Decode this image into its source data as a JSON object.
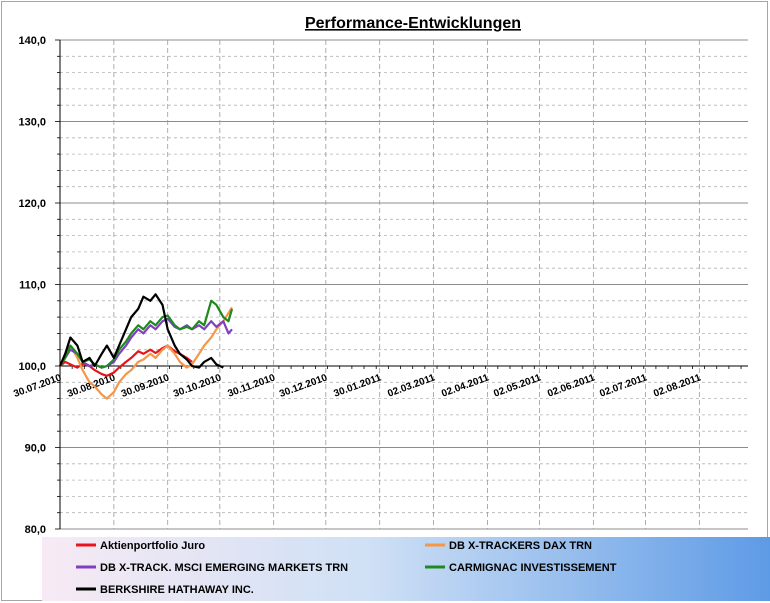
{
  "chart_data": {
    "type": "line",
    "title": "Performance-Entwicklungen",
    "xlabel": "",
    "ylabel": "",
    "ylim": [
      80,
      140
    ],
    "y_ticks": [
      "80,0",
      "90,0",
      "100,0",
      "110,0",
      "120,0",
      "130,0",
      "140,0"
    ],
    "x_ticks": [
      "30.07.2010",
      "30.08.2010",
      "30.09.2010",
      "30.10.2010",
      "30.11.2010",
      "30.12.2010",
      "30.01.2011",
      "02.03.2011",
      "02.04.2011",
      "02.05.2011",
      "02.06.2011",
      "02.07.2011",
      "02.08.2011"
    ],
    "x_range": [
      "2010-07-30",
      "2011-08-30"
    ],
    "grid": true,
    "legend_position": "bottom",
    "series": [
      {
        "name": "Aktienportfolio Juro",
        "color": "#e8141c",
        "points": [
          [
            "2010-07-30",
            100.0
          ],
          [
            "2010-08-02",
            100.5
          ],
          [
            "2010-08-05",
            100.2
          ],
          [
            "2010-08-09",
            99.8
          ],
          [
            "2010-08-12",
            100.3
          ],
          [
            "2010-08-16",
            100.0
          ],
          [
            "2010-08-19",
            99.5
          ],
          [
            "2010-08-23",
            99.0
          ],
          [
            "2010-08-26",
            98.8
          ],
          [
            "2010-08-30",
            99.2
          ],
          [
            "2010-09-02",
            99.8
          ],
          [
            "2010-09-06",
            100.5
          ],
          [
            "2010-09-09",
            101.0
          ],
          [
            "2010-09-13",
            101.8
          ],
          [
            "2010-09-16",
            101.5
          ],
          [
            "2010-09-20",
            102.0
          ],
          [
            "2010-09-23",
            101.6
          ],
          [
            "2010-09-27",
            102.2
          ],
          [
            "2010-09-30",
            102.5
          ],
          [
            "2010-10-04",
            101.8
          ],
          [
            "2010-10-07",
            101.5
          ],
          [
            "2010-10-11",
            101.0
          ],
          [
            "2010-10-14",
            100.5
          ]
        ]
      },
      {
        "name": "DB X-TRACKERS DAX TRN",
        "color": "#f79646",
        "points": [
          [
            "2010-07-30",
            100.0
          ],
          [
            "2010-08-02",
            101.5
          ],
          [
            "2010-08-05",
            102.5
          ],
          [
            "2010-08-09",
            101.0
          ],
          [
            "2010-08-12",
            99.5
          ],
          [
            "2010-08-16",
            98.0
          ],
          [
            "2010-08-19",
            97.5
          ],
          [
            "2010-08-23",
            96.5
          ],
          [
            "2010-08-26",
            96.0
          ],
          [
            "2010-08-30",
            96.8
          ],
          [
            "2010-09-02",
            98.0
          ],
          [
            "2010-09-06",
            99.0
          ],
          [
            "2010-09-09",
            99.5
          ],
          [
            "2010-09-13",
            100.5
          ],
          [
            "2010-09-16",
            100.8
          ],
          [
            "2010-09-20",
            101.5
          ],
          [
            "2010-09-23",
            101.0
          ],
          [
            "2010-09-27",
            102.0
          ],
          [
            "2010-09-30",
            102.5
          ],
          [
            "2010-10-04",
            101.5
          ],
          [
            "2010-10-07",
            100.5
          ],
          [
            "2010-10-11",
            99.8
          ],
          [
            "2010-10-14",
            100.2
          ],
          [
            "2010-10-18",
            101.5
          ],
          [
            "2010-10-21",
            102.5
          ],
          [
            "2010-10-25",
            103.5
          ],
          [
            "2010-10-28",
            104.5
          ],
          [
            "2010-11-01",
            105.5
          ],
          [
            "2010-11-04",
            106.5
          ],
          [
            "2010-11-06",
            107.2
          ]
        ]
      },
      {
        "name": "DB X-TRACK.  MSCI EMERGING MARKETS TRN",
        "color": "#7f3fbf",
        "points": [
          [
            "2010-07-30",
            100.0
          ],
          [
            "2010-08-02",
            101.0
          ],
          [
            "2010-08-05",
            102.0
          ],
          [
            "2010-08-09",
            101.5
          ],
          [
            "2010-08-12",
            100.5
          ],
          [
            "2010-08-16",
            100.0
          ],
          [
            "2010-08-19",
            100.2
          ],
          [
            "2010-08-23",
            99.8
          ],
          [
            "2010-08-26",
            100.0
          ],
          [
            "2010-08-30",
            100.5
          ],
          [
            "2010-09-02",
            101.5
          ],
          [
            "2010-09-06",
            102.5
          ],
          [
            "2010-09-09",
            103.5
          ],
          [
            "2010-09-13",
            104.5
          ],
          [
            "2010-09-16",
            104.0
          ],
          [
            "2010-09-20",
            105.0
          ],
          [
            "2010-09-23",
            104.5
          ],
          [
            "2010-09-27",
            105.5
          ],
          [
            "2010-09-30",
            105.8
          ],
          [
            "2010-10-04",
            104.8
          ],
          [
            "2010-10-07",
            104.5
          ],
          [
            "2010-10-11",
            105.0
          ],
          [
            "2010-10-14",
            104.5
          ],
          [
            "2010-10-18",
            105.0
          ],
          [
            "2010-10-21",
            104.5
          ],
          [
            "2010-10-25",
            105.5
          ],
          [
            "2010-10-28",
            104.8
          ],
          [
            "2010-11-01",
            105.5
          ],
          [
            "2010-11-04",
            104.0
          ],
          [
            "2010-11-06",
            104.5
          ]
        ]
      },
      {
        "name": "CARMIGNAC INVESTISSEMENT",
        "color": "#1e8a1e",
        "points": [
          [
            "2010-07-30",
            100.0
          ],
          [
            "2010-08-02",
            101.0
          ],
          [
            "2010-08-05",
            102.5
          ],
          [
            "2010-08-09",
            101.5
          ],
          [
            "2010-08-12",
            100.5
          ],
          [
            "2010-08-16",
            100.8
          ],
          [
            "2010-08-19",
            100.2
          ],
          [
            "2010-08-23",
            99.8
          ],
          [
            "2010-08-26",
            100.0
          ],
          [
            "2010-08-30",
            100.8
          ],
          [
            "2010-09-02",
            102.0
          ],
          [
            "2010-09-06",
            103.0
          ],
          [
            "2010-09-09",
            104.0
          ],
          [
            "2010-09-13",
            105.0
          ],
          [
            "2010-09-16",
            104.5
          ],
          [
            "2010-09-20",
            105.5
          ],
          [
            "2010-09-23",
            105.0
          ],
          [
            "2010-09-27",
            106.0
          ],
          [
            "2010-09-30",
            106.2
          ],
          [
            "2010-10-04",
            105.0
          ],
          [
            "2010-10-07",
            104.5
          ],
          [
            "2010-10-11",
            104.8
          ],
          [
            "2010-10-14",
            104.5
          ],
          [
            "2010-10-18",
            105.5
          ],
          [
            "2010-10-21",
            105.0
          ],
          [
            "2010-10-25",
            108.0
          ],
          [
            "2010-10-28",
            107.5
          ],
          [
            "2010-11-01",
            106.0
          ],
          [
            "2010-11-04",
            105.5
          ],
          [
            "2010-11-06",
            107.0
          ]
        ]
      },
      {
        "name": "BERKSHIRE HATHAWAY INC.",
        "color": "#000000",
        "points": [
          [
            "2010-07-30",
            100.0
          ],
          [
            "2010-08-02",
            101.5
          ],
          [
            "2010-08-05",
            103.5
          ],
          [
            "2010-08-09",
            102.5
          ],
          [
            "2010-08-12",
            100.5
          ],
          [
            "2010-08-16",
            101.0
          ],
          [
            "2010-08-19",
            100.0
          ],
          [
            "2010-08-23",
            101.5
          ],
          [
            "2010-08-26",
            102.5
          ],
          [
            "2010-08-30",
            101.0
          ],
          [
            "2010-09-02",
            102.5
          ],
          [
            "2010-09-06",
            104.5
          ],
          [
            "2010-09-09",
            106.0
          ],
          [
            "2010-09-13",
            107.0
          ],
          [
            "2010-09-16",
            108.5
          ],
          [
            "2010-09-20",
            108.0
          ],
          [
            "2010-09-23",
            108.8
          ],
          [
            "2010-09-27",
            107.5
          ],
          [
            "2010-09-30",
            104.5
          ],
          [
            "2010-10-04",
            102.5
          ],
          [
            "2010-10-07",
            101.5
          ],
          [
            "2010-10-11",
            100.8
          ],
          [
            "2010-10-14",
            100.0
          ],
          [
            "2010-10-18",
            99.8
          ],
          [
            "2010-10-21",
            100.5
          ],
          [
            "2010-10-25",
            101.0
          ],
          [
            "2010-10-28",
            100.2
          ],
          [
            "2010-11-01",
            99.8
          ]
        ]
      }
    ]
  }
}
